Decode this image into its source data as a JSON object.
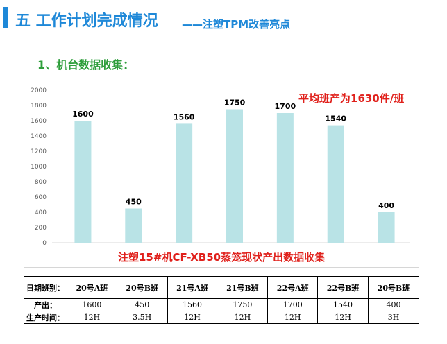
{
  "header": {
    "section_title": "五 工作计划完成情况",
    "sub_title": "——注塑TPM改善亮点"
  },
  "heading": "1、机台数据收集：",
  "chart_data": {
    "type": "bar",
    "categories": [
      "20号A班",
      "20号B班",
      "21号A班",
      "21号B班",
      "22号A班",
      "22号B班",
      "20号B班"
    ],
    "values": [
      1600,
      450,
      1560,
      1750,
      1700,
      1540,
      400
    ],
    "ylim": [
      0,
      2000
    ],
    "yticks": [
      0,
      200,
      400,
      600,
      800,
      1000,
      1200,
      1400,
      1600,
      1800,
      2000
    ],
    "data_labels": [
      "1600",
      "450",
      "1560",
      "1750",
      "1700",
      "1540",
      "400"
    ],
    "annotation": "平均班产为1630件/班",
    "caption": "注塑15#机CF-XB50蒸笼现状产出数据收集",
    "bar_color": "#b9e3e6",
    "grid": false
  },
  "table": {
    "rows": [
      {
        "label": "日期班别：",
        "cells": [
          "20号A班",
          "20号B班",
          "21号A班",
          "21号B班",
          "22号A班",
          "22号B班",
          "20号B班"
        ]
      },
      {
        "label": "产出：",
        "cells": [
          "1600",
          "450",
          "1560",
          "1750",
          "1700",
          "1540",
          "400"
        ]
      },
      {
        "label": "生产时间：",
        "cells": [
          "12H",
          "3.5H",
          "12H",
          "12H",
          "12H",
          "12H",
          "3H"
        ]
      }
    ]
  }
}
